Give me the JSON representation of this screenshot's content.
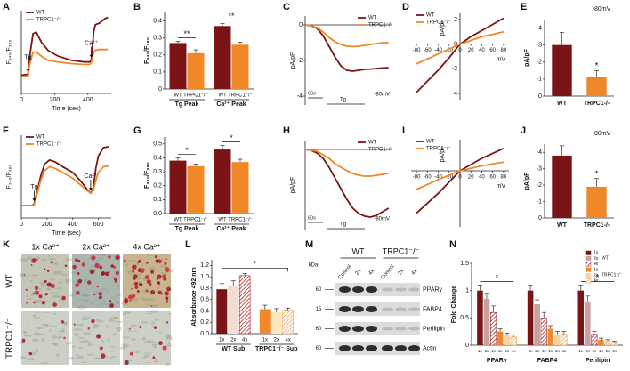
{
  "chart_data": [
    {
      "panel": "A",
      "type": "line",
      "xlabel": "Time (sec)",
      "ylabel": "F₃₄₀/F₃₈₀",
      "x": [
        0,
        40,
        50,
        70,
        90,
        120,
        160,
        220,
        300,
        380,
        410,
        420,
        435,
        445,
        470,
        500,
        520
      ],
      "xlim": [
        0,
        540
      ],
      "xticks": [
        0,
        200,
        400
      ],
      "ylim": [
        0,
        1
      ],
      "series": [
        {
          "name": "WT",
          "color": "#7b1416",
          "values": [
            0.22,
            0.23,
            0.45,
            0.72,
            0.74,
            0.62,
            0.52,
            0.45,
            0.4,
            0.38,
            0.38,
            0.4,
            0.75,
            0.83,
            0.85,
            0.9,
            0.92
          ]
        },
        {
          "name": "TRPC1⁻/⁻",
          "color": "#f0882a",
          "values": [
            0.2,
            0.21,
            0.35,
            0.5,
            0.5,
            0.45,
            0.4,
            0.38,
            0.36,
            0.35,
            0.35,
            0.37,
            0.5,
            0.52,
            0.53,
            0.53,
            0.53
          ]
        }
      ],
      "annotations": [
        {
          "text": "Tg",
          "x": 40
        },
        {
          "text": "Ca²⁺",
          "x": 420
        }
      ],
      "legend": "upper left"
    },
    {
      "panel": "B",
      "type": "bar",
      "ylabel": "F₃₄₀/F₃₈₀",
      "categories": [
        "Tg Peak",
        "Ca²⁺ Peak"
      ],
      "series": [
        {
          "name": "WT",
          "color": "#7b1416",
          "values": [
            0.27,
            0.37
          ],
          "errors": [
            0.01,
            0.015
          ]
        },
        {
          "name": "TRPC1⁻/⁻",
          "color": "#f0882a",
          "values": [
            0.21,
            0.26
          ],
          "errors": [
            0.02,
            0.015
          ]
        }
      ],
      "ylim": [
        0,
        0.45
      ],
      "yticks": [
        0,
        0.1,
        0.2,
        0.3,
        0.4
      ],
      "bar_labels": true,
      "underline": true,
      "annotations": [
        {
          "text": "**",
          "category": 0
        },
        {
          "text": "**",
          "category": 1
        }
      ]
    },
    {
      "panel": "C",
      "type": "line",
      "ylabel": "pA/pF",
      "x": [
        0,
        20,
        40,
        60,
        80,
        100,
        120,
        140,
        160,
        180,
        200,
        220,
        240,
        260,
        280
      ],
      "xlim": [
        0,
        290
      ],
      "ylim": [
        -4.5,
        0.5
      ],
      "yticks": [
        0,
        -2,
        -4
      ],
      "axis_at_zero": true,
      "series": [
        {
          "name": "WT",
          "color": "#7b1416",
          "values": [
            0,
            -0.05,
            -0.2,
            -0.6,
            -1.2,
            -1.8,
            -2.3,
            -2.55,
            -2.6,
            -2.55,
            -2.5,
            -2.48,
            -2.45,
            -2.42,
            -2.4
          ]
        },
        {
          "name": "TRPC1⁻/⁻",
          "color": "#f0882a",
          "values": [
            0,
            -0.05,
            -0.15,
            -0.4,
            -0.7,
            -0.95,
            -1.1,
            -1.2,
            -1.22,
            -1.2,
            -1.15,
            -1.1,
            -1.05,
            -1.0,
            -1.0
          ]
        }
      ],
      "legend": "upper right",
      "scale_bar": "60s",
      "stim": "Tg",
      "note": "-80mV"
    },
    {
      "panel": "D",
      "type": "line",
      "xlabel": "mV",
      "ylabel": "pA/pF",
      "x": [
        -80,
        -60,
        -40,
        -20,
        0,
        20,
        40,
        60,
        80
      ],
      "xlim": [
        -90,
        90
      ],
      "xticks": [
        -80,
        -60,
        -40,
        -20,
        0,
        20,
        40,
        60,
        80
      ],
      "ylim": [
        -4.5,
        2.5
      ],
      "yticks": [
        2,
        0,
        -2,
        -4
      ],
      "axis_at_zero": true,
      "series": [
        {
          "name": "WT",
          "color": "#7b1416",
          "values": [
            -3.9,
            -3.0,
            -2.1,
            -1.1,
            0,
            0.6,
            1.1,
            1.6,
            2.1
          ]
        },
        {
          "name": "TRPC1⁻/⁻",
          "color": "#f0882a",
          "values": [
            -1.6,
            -1.2,
            -0.8,
            -0.4,
            0,
            0.3,
            0.6,
            0.8,
            1.0
          ]
        }
      ],
      "legend": "upper left"
    },
    {
      "panel": "E",
      "type": "bar",
      "ylabel": "pA/pF",
      "title": "-80mV",
      "categories": [
        "WT",
        "TRPC1-/-"
      ],
      "series": [
        {
          "colors": [
            "#7b1416",
            "#f0882a"
          ],
          "values": [
            -3.0,
            -1.1
          ],
          "errors": [
            0.75,
            0.4
          ]
        }
      ],
      "ylim": [
        0,
        -4.5
      ],
      "yticks": [
        0,
        -1,
        -2,
        -3,
        -4
      ],
      "annotations": [
        {
          "text": "*",
          "category": 1
        }
      ]
    },
    {
      "panel": "F",
      "type": "line",
      "xlabel": "Time (sec)",
      "ylabel": "F₃₄₀/F₃₈₀",
      "x": [
        0,
        80,
        100,
        120,
        150,
        180,
        220,
        260,
        320,
        400,
        460,
        520,
        540,
        560,
        580,
        600,
        640,
        680
      ],
      "xlim": [
        0,
        700
      ],
      "xticks": [
        0,
        200,
        400,
        600
      ],
      "ylim": [
        0,
        1
      ],
      "series": [
        {
          "name": "WT",
          "color": "#7b1416",
          "values": [
            0.15,
            0.15,
            0.17,
            0.3,
            0.5,
            0.65,
            0.7,
            0.68,
            0.62,
            0.55,
            0.45,
            0.33,
            0.3,
            0.35,
            0.6,
            0.75,
            0.85,
            0.86
          ]
        },
        {
          "name": "TRPC1⁻/⁻",
          "color": "#f0882a",
          "values": [
            0.15,
            0.15,
            0.16,
            0.27,
            0.45,
            0.57,
            0.62,
            0.6,
            0.55,
            0.48,
            0.4,
            0.32,
            0.3,
            0.33,
            0.45,
            0.55,
            0.62,
            0.63
          ]
        }
      ],
      "annotations": [
        {
          "text": "Tg",
          "x": 100
        },
        {
          "text": "Ca²⁺",
          "x": 540
        }
      ],
      "legend": "upper left"
    },
    {
      "panel": "G",
      "type": "bar",
      "ylabel": "F₃₄₀/F₃₈₀",
      "categories": [
        "Tg Peak",
        "Ca²⁺ Peak"
      ],
      "series": [
        {
          "name": "WT",
          "color": "#7b1416",
          "values": [
            0.38,
            0.46
          ],
          "errors": [
            0.02,
            0.03
          ]
        },
        {
          "name": "TRPC1⁻/⁻",
          "color": "#f0882a",
          "values": [
            0.34,
            0.37
          ],
          "errors": [
            0.015,
            0.02
          ]
        }
      ],
      "ylim": [
        0,
        0.55
      ],
      "yticks": [
        {
          "value": 0,
          "label": "0.0"
        },
        0.1,
        0.2,
        0.3,
        0.4,
        0.5
      ],
      "bar_labels": true,
      "underline": true,
      "annotations": [
        {
          "text": "*",
          "category": 0
        },
        {
          "text": "*",
          "category": 1
        }
      ]
    },
    {
      "panel": "H",
      "type": "line",
      "ylabel": "pA/pF",
      "x": [
        0,
        20,
        40,
        60,
        80,
        100,
        120,
        140,
        160,
        180,
        200,
        220,
        240,
        260,
        280
      ],
      "xlim": [
        0,
        290
      ],
      "ylim": [
        -4.5,
        0.5
      ],
      "axis_at_zero": true,
      "series": [
        {
          "name": "WT",
          "color": "#7b1416",
          "values": [
            0,
            -0.05,
            -0.2,
            -0.5,
            -1.0,
            -1.6,
            -2.2,
            -2.8,
            -3.3,
            -3.6,
            -3.75,
            -3.8,
            -3.7,
            -3.5,
            -3.3
          ]
        },
        {
          "name": "TRPC1⁻/⁻",
          "color": "#f0882a",
          "values": [
            0,
            -0.05,
            -0.1,
            -0.3,
            -0.5,
            -0.8,
            -1.0,
            -1.2,
            -1.35,
            -1.45,
            -1.5,
            -1.5,
            -1.45,
            -1.4,
            -1.35
          ]
        }
      ],
      "legend": "upper right",
      "scale_bar": "60s",
      "stim": "Tg",
      "note": "-80mV"
    },
    {
      "panel": "I",
      "type": "line",
      "xlabel": "mV",
      "ylabel": "pA/pF",
      "x": [
        -80,
        -60,
        -40,
        -20,
        0,
        20,
        40,
        60,
        80
      ],
      "xlim": [
        -90,
        90
      ],
      "xticks": [
        -80,
        -60,
        -40,
        -20,
        0,
        20,
        40,
        60,
        80
      ],
      "ylim": [
        -4.5,
        2.5
      ],
      "axis_at_zero": true,
      "series": [
        {
          "name": "WT",
          "color": "#7b1416",
          "values": [
            -3.4,
            -2.6,
            -1.8,
            -0.9,
            0,
            0.5,
            1.0,
            1.4,
            1.8
          ]
        },
        {
          "name": "TRPC1⁻/⁻",
          "color": "#f0882a",
          "values": [
            -1.5,
            -1.1,
            -0.7,
            -0.35,
            0,
            0.2,
            0.4,
            0.55,
            0.7
          ]
        }
      ],
      "legend": "upper left"
    },
    {
      "panel": "J",
      "type": "bar",
      "ylabel": "pA/pF",
      "title": "-80mV",
      "categories": [
        "WT",
        "TRPC1-/-"
      ],
      "series": [
        {
          "colors": [
            "#7b1416",
            "#f0882a"
          ],
          "values": [
            -3.8,
            -1.9
          ],
          "errors": [
            0.6,
            0.5
          ]
        }
      ],
      "ylim": [
        0,
        -4.5
      ],
      "yticks": [
        0,
        -1,
        -2,
        -3,
        -4
      ],
      "annotations": [
        {
          "text": "*",
          "category": 1
        }
      ]
    },
    {
      "panel": "L",
      "type": "bar",
      "ylabel": "Absorbance 492 nm",
      "categories": [
        "WT Sub",
        "TRPC1⁻/⁻ Sub"
      ],
      "series": [
        {
          "name": "1x",
          "colors": [
            "#7b1416",
            "#f0882a"
          ],
          "values": [
            0.78,
            0.43
          ],
          "errors": [
            0.1,
            0.07
          ]
        },
        {
          "name": "2x",
          "colors": [
            "#f3dcd0",
            "#fbe7bd"
          ],
          "values": [
            0.85,
            0.38
          ],
          "errors": [
            0.08,
            0.06
          ]
        },
        {
          "name": "4x",
          "colors": [
            "#b22a2a",
            "#f0a050"
          ],
          "pattern": "hatch",
          "values": [
            1.02,
            0.41
          ],
          "errors": [
            0.04,
            0.04
          ]
        }
      ],
      "ylim": [
        0,
        1.3
      ],
      "yticks": [
        {
          "value": 0,
          "label": "0.0"
        },
        0.2,
        0.4,
        0.6,
        0.8,
        {
          "value": 1,
          "label": "1.0"
        },
        1.2
      ],
      "bar_labels": true,
      "underline": true,
      "annotations": [
        {
          "text": "*"
        }
      ]
    },
    {
      "panel": "N",
      "type": "bar",
      "ylabel": "Fold Change",
      "categories": [
        "PPARγ",
        "FABP4",
        "Perilipin"
      ],
      "series": [
        {
          "name": "1x",
          "color": "#7b1416",
          "values": [
            1.0,
            1.0,
            1.0
          ],
          "errors": [
            0.1,
            0.1,
            0.1
          ]
        },
        {
          "name": "2x",
          "color": "#c9a0a0",
          "values": [
            0.85,
            0.75,
            0.8
          ],
          "errors": [
            0.1,
            0.08,
            0.1
          ]
        },
        {
          "name": "4x",
          "color": "#9b3030",
          "pattern": "hatch",
          "values": [
            0.6,
            0.5,
            0.2
          ],
          "errors": [
            0.12,
            0.1,
            0.05
          ]
        },
        {
          "name": "1x",
          "color": "#f0882a",
          "values": [
            0.25,
            0.3,
            0.1
          ],
          "errors": [
            0.05,
            0.06,
            0.03
          ]
        },
        {
          "name": "2x",
          "color": "#f8d2a0",
          "values": [
            0.18,
            0.2,
            0.08
          ],
          "errors": [
            0.04,
            0.05,
            0.02
          ]
        },
        {
          "name": "4x",
          "color": "#f0a050",
          "pattern": "hatch",
          "values": [
            0.15,
            0.2,
            0.05
          ],
          "errors": [
            0.04,
            0.05,
            0.02
          ]
        }
      ],
      "ylim": [
        0,
        1.5
      ],
      "yticks": [
        0,
        0.5,
        1,
        1.5
      ],
      "bar_labels": true,
      "legend": "upper right",
      "legend_groups": [
        "WT",
        "TRPC1⁻/⁻"
      ],
      "annotations": [
        {
          "text": "*",
          "category": 0
        },
        {
          "text": "*",
          "category": 2
        }
      ]
    }
  ],
  "micrographs": {
    "panel": "K",
    "columns": [
      "1x Ca²⁺",
      "2x Ca²⁺",
      "4x Ca²⁺"
    ],
    "rows": [
      "WT",
      "TRPC1⁻/⁻"
    ]
  },
  "blot": {
    "panel": "M",
    "unit": "kDa",
    "groups": [
      "WT",
      "TRPC1⁻/⁻"
    ],
    "lanes": [
      "Control",
      "2x",
      "4x",
      "Control",
      "2x",
      "4x"
    ],
    "rows": [
      {
        "kda": 60,
        "label": "PPARγ"
      },
      {
        "kda": 15,
        "label": "FABP4"
      },
      {
        "kda": 60,
        "label": "Perilipin"
      },
      {
        "kda": 60,
        "label": "Actin"
      }
    ]
  }
}
